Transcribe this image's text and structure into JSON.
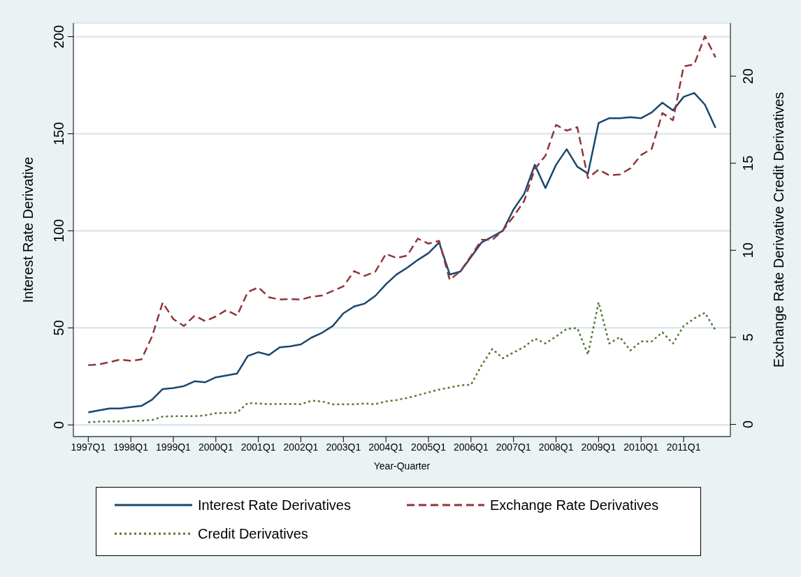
{
  "chart_data": {
    "type": "line",
    "xlabel": "Year-Quarter",
    "ylabel": "Interest Rate Derivative",
    "y2label": "Exchange Rate Derivative Credit Derivatives",
    "categories": [
      "1997Q1",
      null,
      null,
      null,
      "1998Q1",
      null,
      null,
      null,
      "1999Q1",
      null,
      null,
      null,
      "2000Q1",
      null,
      null,
      null,
      "2001Q1",
      null,
      null,
      null,
      "2002Q1",
      null,
      null,
      null,
      "2003Q1",
      null,
      null,
      null,
      "2004Q1",
      null,
      null,
      null,
      "2005Q1",
      null,
      null,
      null,
      "2006Q1",
      null,
      null,
      null,
      "2007Q1",
      null,
      null,
      null,
      "2008Q1",
      null,
      null,
      null,
      "2009Q1",
      null,
      null,
      null,
      "2010Q1",
      null,
      null,
      null,
      "2011Q1",
      null,
      null,
      null
    ],
    "series": [
      {
        "name": "Interest Rate Derivatives",
        "color": "#1a476f",
        "line_style": "solid",
        "values": [
          6.5,
          7.5,
          8.5,
          8.5,
          9.2,
          9.8,
          13,
          18.5,
          19,
          20,
          22.5,
          22,
          24.5,
          25.5,
          26.5,
          35.5,
          37.5,
          36,
          40,
          40.5,
          41.5,
          45,
          47.5,
          51,
          57.5,
          61,
          62.5,
          66.5,
          72.5,
          77.5,
          81,
          85,
          88.5,
          94,
          77.5,
          79,
          86.5,
          94,
          97,
          100,
          111,
          119,
          134,
          122,
          134,
          142,
          133,
          129.5,
          155.5,
          158,
          158,
          158.5,
          158,
          161,
          166,
          162,
          169,
          171,
          165,
          153
        ]
      },
      {
        "name": "Exchange Rate Derivatives",
        "color": "#90353b",
        "line_style": "dashed",
        "axis": "y2",
        "values": [
          3.4,
          3.45,
          3.57,
          3.73,
          3.65,
          3.73,
          5.05,
          7,
          6.05,
          5.65,
          6.25,
          5.93,
          6.2,
          6.57,
          6.25,
          7.6,
          7.87,
          7.3,
          7.17,
          7.2,
          7.17,
          7.33,
          7.4,
          7.67,
          7.93,
          8.8,
          8.53,
          8.77,
          9.8,
          9.55,
          9.7,
          10.67,
          10.38,
          10.54,
          8.3,
          8.8,
          9.67,
          10.6,
          10.6,
          11.14,
          11.94,
          12.83,
          14.67,
          15.43,
          17.2,
          16.87,
          17.07,
          14.15,
          14.63,
          14.31,
          14.35,
          14.71,
          15.47,
          15.83,
          17.88,
          17.47,
          20.56,
          20.68,
          22.3,
          21.08
        ]
      },
      {
        "name": "Credit Derivatives",
        "color": "#55752f",
        "line_style": "dotted",
        "axis": "y2",
        "values": [
          0.12,
          0.16,
          0.17,
          0.17,
          0.2,
          0.21,
          0.25,
          0.45,
          0.47,
          0.47,
          0.47,
          0.52,
          0.64,
          0.66,
          0.68,
          1.23,
          1.2,
          1.16,
          1.18,
          1.18,
          1.16,
          1.36,
          1.32,
          1.16,
          1.16,
          1.16,
          1.2,
          1.16,
          1.32,
          1.4,
          1.52,
          1.68,
          1.84,
          2,
          2.12,
          2.24,
          2.28,
          3.4,
          4.33,
          3.8,
          4.13,
          4.45,
          4.93,
          4.65,
          5.05,
          5.49,
          5.53,
          4.01,
          7.01,
          4.65,
          5.01,
          4.25,
          4.77,
          4.77,
          5.29,
          4.65,
          5.65,
          6.09,
          6.41,
          5.41
        ]
      }
    ],
    "ylim": [
      -6,
      207
    ],
    "yticks": [
      0,
      50,
      100,
      150,
      200
    ],
    "y2lim": [
      -0.7,
      23.05
    ],
    "y2ticks": [
      0,
      5,
      10,
      15,
      20
    ],
    "grid": "y",
    "legend": "bottom",
    "marker": "none"
  }
}
